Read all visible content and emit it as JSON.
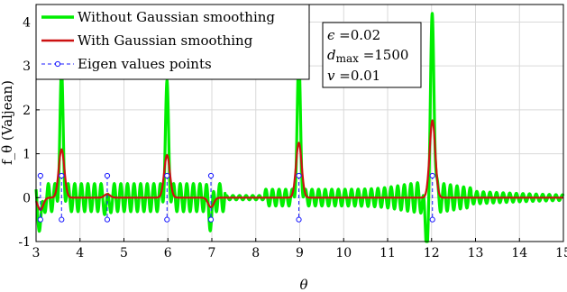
{
  "chart_data": {
    "type": "line",
    "xlabel": "θ",
    "ylabel": "f_θ (Valjean)",
    "xlim": [
      3,
      15
    ],
    "ylim": [
      -1,
      4.4
    ],
    "xticks": [
      3,
      4,
      5,
      6,
      7,
      8,
      9,
      10,
      11,
      12,
      13,
      14,
      15
    ],
    "yticks": [
      -1,
      0,
      1,
      2,
      3,
      4
    ],
    "grid": true,
    "legend_position": "top-left",
    "legend": [
      {
        "label": "Without Gaussian smoothing",
        "style": "line",
        "color": "#00ee00"
      },
      {
        "label": "With Gaussian smoothing",
        "style": "line",
        "color": "#cc1111"
      },
      {
        "label": "Eigen values points",
        "style": "dashed-stem-circle",
        "color": "#1a1aff"
      }
    ],
    "parameters": {
      "epsilon": {
        "symbol": "ϵ",
        "value": "0.02"
      },
      "dmax": {
        "symbol": "d",
        "subscript": "max",
        "value": "1500"
      },
      "v": {
        "symbol": "v",
        "value": "0.01"
      }
    },
    "series": [
      {
        "name": "Without Gaussian smoothing",
        "color": "#00ee00",
        "peaks": [
          {
            "x": 3.1,
            "y": -0.68
          },
          {
            "x": 3.58,
            "y": 2.62
          },
          {
            "x": 4.62,
            "y": -0.25
          },
          {
            "x": 5.98,
            "y": 2.35
          },
          {
            "x": 6.98,
            "y": -0.5
          },
          {
            "x": 8.98,
            "y": 3.02
          },
          {
            "x": 12.02,
            "y": 4.2
          },
          {
            "x": 11.88,
            "y": -0.95
          }
        ],
        "oscillation_period": 0.15,
        "oscillation_envelope": 0.32
      },
      {
        "name": "With Gaussian smoothing",
        "color": "#cc1111",
        "peaks": [
          {
            "x": 3.1,
            "y": -0.28
          },
          {
            "x": 3.58,
            "y": 1.1
          },
          {
            "x": 4.62,
            "y": 0.08
          },
          {
            "x": 5.98,
            "y": 0.97
          },
          {
            "x": 6.98,
            "y": -0.22
          },
          {
            "x": 8.98,
            "y": 1.25
          },
          {
            "x": 12.02,
            "y": 1.76
          }
        ]
      }
    ],
    "eigen_values": [
      3.1,
      3.58,
      4.62,
      5.98,
      6.98,
      8.98,
      12.02
    ],
    "eigen_marker_top": 0.5,
    "eigen_marker_bottom": -0.5
  }
}
